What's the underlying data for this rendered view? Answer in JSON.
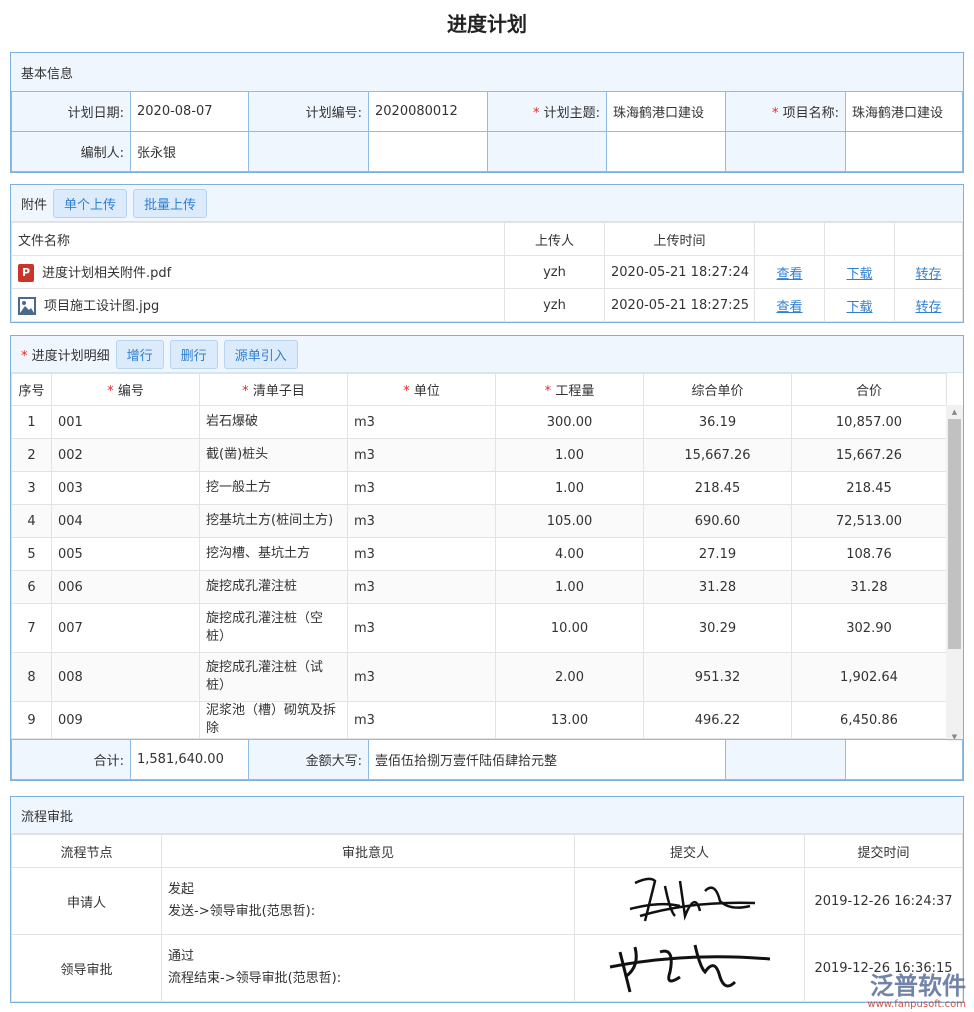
{
  "title": "进度计划",
  "basic": {
    "header": "基本信息",
    "plan_date_label": "计划日期:",
    "plan_date": "2020-08-07",
    "plan_no_label": "计划编号:",
    "plan_no": "2020080012",
    "plan_subject_label": "计划主题:",
    "plan_subject": "珠海鹤港口建设",
    "project_label": "项目名称:",
    "project": "珠海鹤港口建设",
    "author_label": "编制人:",
    "author": "张永银"
  },
  "attach": {
    "header": "附件",
    "single_upload": "单个上传",
    "batch_upload": "批量上传",
    "columns": [
      "文件名称",
      "上传人",
      "上传时间"
    ],
    "files": [
      {
        "name": "进度计划相关附件.pdf",
        "icon": "pdf-icon",
        "uploader": "yzh",
        "time": "2020-05-21 18:27:24",
        "view": "查看",
        "download": "下载",
        "transfer": "转存"
      },
      {
        "name": "项目施工设计图.jpg",
        "icon": "image-icon",
        "uploader": "yzh",
        "time": "2020-05-21 18:27:25",
        "view": "查看",
        "download": "下载",
        "transfer": "转存"
      }
    ]
  },
  "detail": {
    "header": "进度计划明细",
    "add_row": "增行",
    "del_row": "删行",
    "import": "源单引入",
    "columns": [
      "序号",
      "编号",
      "清单子目",
      "单位",
      "工程量",
      "综合单价",
      "合价"
    ],
    "rows": [
      [
        "1",
        "001",
        "岩石爆破",
        "m3",
        "300.00",
        "36.19",
        "10,857.00"
      ],
      [
        "2",
        "002",
        "截(凿)桩头",
        "m3",
        "1.00",
        "15,667.26",
        "15,667.26"
      ],
      [
        "3",
        "003",
        "挖一般土方",
        "m3",
        "1.00",
        "218.45",
        "218.45"
      ],
      [
        "4",
        "004",
        "挖基坑土方(桩间土方)",
        "m3",
        "105.00",
        "690.60",
        "72,513.00"
      ],
      [
        "5",
        "005",
        "挖沟槽、基坑土方",
        "m3",
        "4.00",
        "27.19",
        "108.76"
      ],
      [
        "6",
        "006",
        "旋挖成孔灌注桩",
        "m3",
        "1.00",
        "31.28",
        "31.28"
      ],
      [
        "7",
        "007",
        "旋挖成孔灌注桩（空桩）",
        "m3",
        "10.00",
        "30.29",
        "302.90"
      ],
      [
        "8",
        "008",
        "旋挖成孔灌注桩（试桩）",
        "m3",
        "2.00",
        "951.32",
        "1,902.64"
      ],
      [
        "9",
        "009",
        "泥浆池（槽）砌筑及拆除",
        "m3",
        "13.00",
        "496.22",
        "6,450.86"
      ]
    ],
    "total_label": "合计:",
    "total": "1,581,640.00",
    "amount_cn_label": "金额大写:",
    "amount_cn": "壹佰伍拾捌万壹仟陆佰肆拾元整"
  },
  "flow": {
    "header": "流程审批",
    "columns": [
      "流程节点",
      "审批意见",
      "提交人",
      "提交时间"
    ],
    "rows": [
      {
        "node": "申请人",
        "opinion": "发起",
        "detail": "发送->领导审批(范思哲):",
        "time": "2019-12-26 16:24:37"
      },
      {
        "node": "领导审批",
        "opinion": "通过",
        "detail": "流程结束->领导审批(范思哲):",
        "time": "2019-12-26 16:36:15"
      }
    ]
  },
  "watermark": {
    "brand": "泛普软件",
    "url": "www.fanpusoft.com"
  }
}
